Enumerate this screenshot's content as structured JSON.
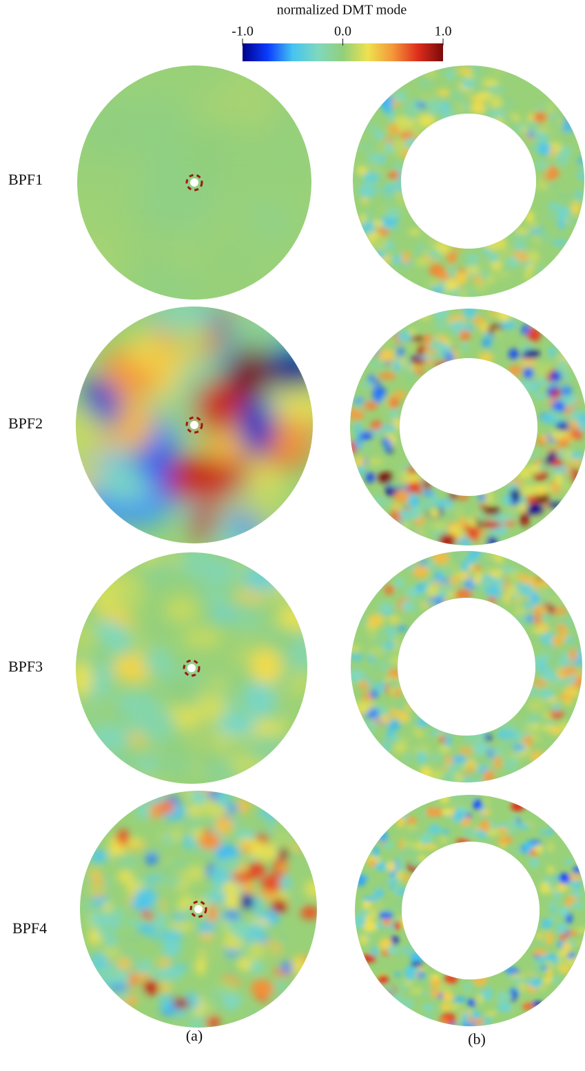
{
  "colorbar": {
    "title": "normalized DMT mode",
    "range": [
      -1,
      1
    ],
    "ticks": [
      {
        "value": -1,
        "label": "-1.0"
      },
      {
        "value": 0,
        "label": "0.0"
      },
      {
        "value": 1,
        "label": "1.0"
      }
    ],
    "colormap": [
      "#00008b",
      "#0a3cff",
      "#45c4f0",
      "#7fd8bf",
      "#92cf7c",
      "#eee24f",
      "#f4963a",
      "#de2d1c",
      "#780a0a"
    ]
  },
  "rows": [
    {
      "label": "BPF1"
    },
    {
      "label": "BPF2"
    },
    {
      "label": "BPF3"
    },
    {
      "label": "BPF4"
    }
  ],
  "panels": [
    "(a)",
    "(b)"
  ]
}
